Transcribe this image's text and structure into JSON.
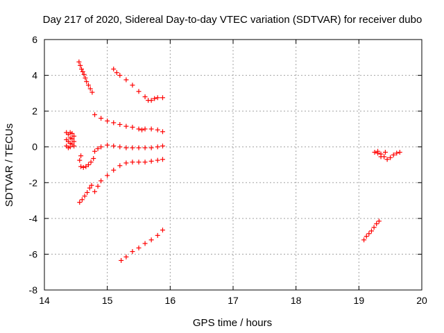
{
  "chart_data": {
    "type": "scatter",
    "title": "Day 217 of 2020, Sidereal Day-to-day VTEC variation (SDTVAR) for receiver dubo",
    "xlabel": "GPS time / hours",
    "ylabel": "SDTVAR / TECUs",
    "xlim": [
      14,
      20
    ],
    "ylim": [
      -8,
      6
    ],
    "xticks": [
      "14",
      "15",
      "16",
      "17",
      "18",
      "19",
      "20"
    ],
    "yticks": [
      "-8",
      "-6",
      "-4",
      "-2",
      "0",
      "2",
      "4",
      "6"
    ],
    "grid": true,
    "marker": "plus",
    "marker_color": "#ff0000",
    "series": [
      {
        "points": [
          [
            14.55,
            4.75
          ],
          [
            14.57,
            4.55
          ],
          [
            14.59,
            4.35
          ],
          [
            14.61,
            4.2
          ],
          [
            14.63,
            4.05
          ],
          [
            14.65,
            3.85
          ],
          [
            14.67,
            3.65
          ],
          [
            14.7,
            3.45
          ],
          [
            14.73,
            3.25
          ],
          [
            14.76,
            3.05
          ]
        ]
      },
      {
        "points": [
          [
            15.1,
            4.35
          ],
          [
            15.15,
            4.15
          ],
          [
            15.2,
            4.0
          ],
          [
            15.3,
            3.75
          ],
          [
            15.4,
            3.45
          ],
          [
            15.5,
            3.1
          ],
          [
            15.6,
            2.8
          ],
          [
            15.65,
            2.6
          ],
          [
            15.7,
            2.6
          ],
          [
            15.75,
            2.7
          ],
          [
            15.8,
            2.75
          ],
          [
            15.88,
            2.75
          ]
        ]
      },
      {
        "points": [
          [
            14.8,
            1.8
          ],
          [
            14.9,
            1.6
          ],
          [
            15.0,
            1.45
          ],
          [
            15.1,
            1.35
          ],
          [
            15.2,
            1.25
          ],
          [
            15.3,
            1.15
          ],
          [
            15.4,
            1.1
          ],
          [
            15.5,
            1.0
          ],
          [
            15.55,
            0.95
          ],
          [
            15.6,
            1.0
          ],
          [
            15.7,
            1.0
          ],
          [
            15.8,
            0.95
          ],
          [
            15.88,
            0.85
          ]
        ]
      },
      {
        "points": [
          [
            14.8,
            -0.25
          ],
          [
            14.85,
            -0.1
          ],
          [
            14.9,
            0.0
          ],
          [
            15.0,
            0.1
          ],
          [
            15.1,
            0.05
          ],
          [
            15.2,
            0.0
          ],
          [
            15.3,
            -0.05
          ],
          [
            15.4,
            -0.05
          ],
          [
            15.5,
            -0.05
          ],
          [
            15.6,
            -0.05
          ],
          [
            15.7,
            -0.05
          ],
          [
            15.8,
            0.0
          ],
          [
            15.88,
            0.05
          ]
        ]
      },
      {
        "points": [
          [
            14.58,
            -1.1
          ],
          [
            14.62,
            -1.15
          ],
          [
            14.66,
            -1.1
          ],
          [
            14.7,
            -1.0
          ],
          [
            14.74,
            -0.85
          ],
          [
            14.78,
            -0.65
          ],
          [
            14.56,
            -0.75
          ],
          [
            14.58,
            -0.5
          ]
        ]
      },
      {
        "points": [
          [
            14.35,
            0.8
          ],
          [
            14.35,
            0.4
          ],
          [
            14.35,
            0.05
          ],
          [
            14.38,
            0.7
          ],
          [
            14.38,
            0.3
          ],
          [
            14.38,
            -0.05
          ],
          [
            14.41,
            0.8
          ],
          [
            14.41,
            0.5
          ],
          [
            14.41,
            0.2
          ],
          [
            14.41,
            0.0
          ],
          [
            14.44,
            0.75
          ],
          [
            14.44,
            0.45
          ],
          [
            14.44,
            0.15
          ],
          [
            14.47,
            0.6
          ],
          [
            14.47,
            0.3
          ],
          [
            14.47,
            0.05
          ]
        ]
      },
      {
        "points": [
          [
            14.56,
            -3.1
          ],
          [
            14.6,
            -2.95
          ],
          [
            14.64,
            -2.75
          ],
          [
            14.68,
            -2.55
          ],
          [
            14.72,
            -2.3
          ],
          [
            14.75,
            -2.15
          ]
        ]
      },
      {
        "points": [
          [
            14.8,
            -2.5
          ],
          [
            14.85,
            -2.2
          ],
          [
            14.9,
            -1.9
          ],
          [
            15.0,
            -1.6
          ],
          [
            15.1,
            -1.3
          ],
          [
            15.2,
            -1.05
          ],
          [
            15.3,
            -0.9
          ],
          [
            15.4,
            -0.85
          ],
          [
            15.5,
            -0.85
          ],
          [
            15.6,
            -0.85
          ],
          [
            15.7,
            -0.8
          ],
          [
            15.8,
            -0.75
          ],
          [
            15.88,
            -0.7
          ]
        ]
      },
      {
        "points": [
          [
            15.22,
            -6.35
          ],
          [
            15.3,
            -6.15
          ],
          [
            15.4,
            -5.85
          ],
          [
            15.5,
            -5.65
          ],
          [
            15.6,
            -5.4
          ],
          [
            15.7,
            -5.2
          ],
          [
            15.8,
            -4.95
          ],
          [
            15.88,
            -4.65
          ]
        ]
      },
      {
        "points": [
          [
            19.08,
            -5.2
          ],
          [
            19.12,
            -5.0
          ],
          [
            19.16,
            -4.85
          ],
          [
            19.2,
            -4.7
          ],
          [
            19.24,
            -4.5
          ],
          [
            19.28,
            -4.3
          ],
          [
            19.32,
            -4.15
          ]
        ]
      },
      {
        "points": [
          [
            19.25,
            -0.3
          ],
          [
            19.3,
            -0.35
          ],
          [
            19.35,
            -0.4
          ],
          [
            19.4,
            -0.55
          ],
          [
            19.45,
            -0.7
          ],
          [
            19.5,
            -0.6
          ],
          [
            19.55,
            -0.45
          ],
          [
            19.6,
            -0.35
          ],
          [
            19.65,
            -0.3
          ],
          [
            19.3,
            -0.25
          ],
          [
            19.35,
            -0.55
          ],
          [
            19.42,
            -0.3
          ]
        ]
      }
    ]
  }
}
